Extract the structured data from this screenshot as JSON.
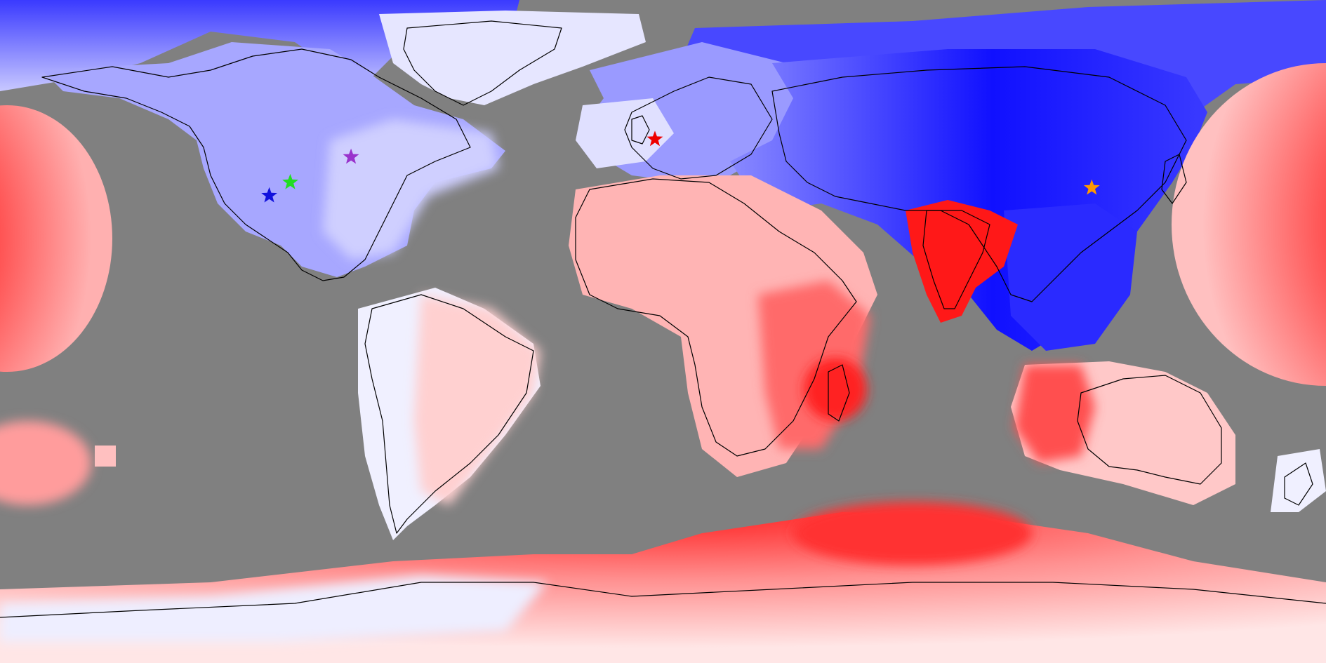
{
  "map": {
    "projection": "equirectangular",
    "background_color": "#808080",
    "color_scale": {
      "negative": "#0000ff",
      "neutral": "#ffffff",
      "positive": "#ff0000"
    },
    "markers": [
      {
        "id": "marker-blue",
        "shape": "star",
        "color": "#1111dd",
        "lon": -106.9,
        "lat": 36.9
      },
      {
        "id": "marker-green",
        "shape": "star",
        "color": "#22dd22",
        "lon": -101.2,
        "lat": 40.5
      },
      {
        "id": "marker-purple",
        "shape": "star",
        "color": "#9933cc",
        "lon": -84.7,
        "lat": 47.4
      },
      {
        "id": "marker-red",
        "shape": "star",
        "color": "#ee0000",
        "lon": -2.2,
        "lat": 52.2
      },
      {
        "id": "marker-orange",
        "shape": "star",
        "color": "#ff9900",
        "lon": 116.4,
        "lat": 39.0
      }
    ]
  }
}
